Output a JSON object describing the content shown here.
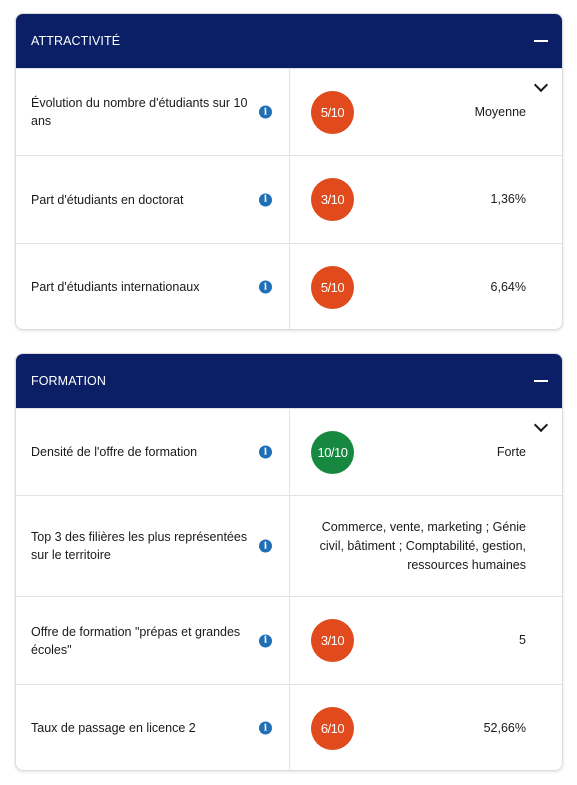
{
  "colors": {
    "header_bg": "#0b1f66",
    "score_low": "#e04a1c",
    "score_high": "#16883f",
    "info_icon": "#1e6fb5"
  },
  "sections": [
    {
      "title": "ATTRACTIVITÉ",
      "rows": [
        {
          "label": "Évolution du nombre d'étudiants sur 10 ans",
          "score": "5/10",
          "value": "Moyenne"
        },
        {
          "label": "Part d'étudiants en doctorat",
          "score": "3/10",
          "value": "1,36%"
        },
        {
          "label": "Part d'étudiants internationaux",
          "score": "5/10",
          "value": "6,64%"
        }
      ]
    },
    {
      "title": "FORMATION",
      "rows": [
        {
          "label": "Densité de l'offre de formation",
          "score": "10/10",
          "value": "Forte"
        },
        {
          "label": "Top 3 des filières les plus représentées sur le territoire",
          "score": "",
          "value": "Commerce, vente, marketing ; Génie civil, bâtiment ; Comptabilité, gestion, ressources humaines"
        },
        {
          "label": "Offre de formation \"prépas et grandes écoles\"",
          "score": "3/10",
          "value": "5"
        },
        {
          "label": "Taux de passage en licence 2",
          "score": "6/10",
          "value": "52,66%"
        }
      ]
    }
  ]
}
